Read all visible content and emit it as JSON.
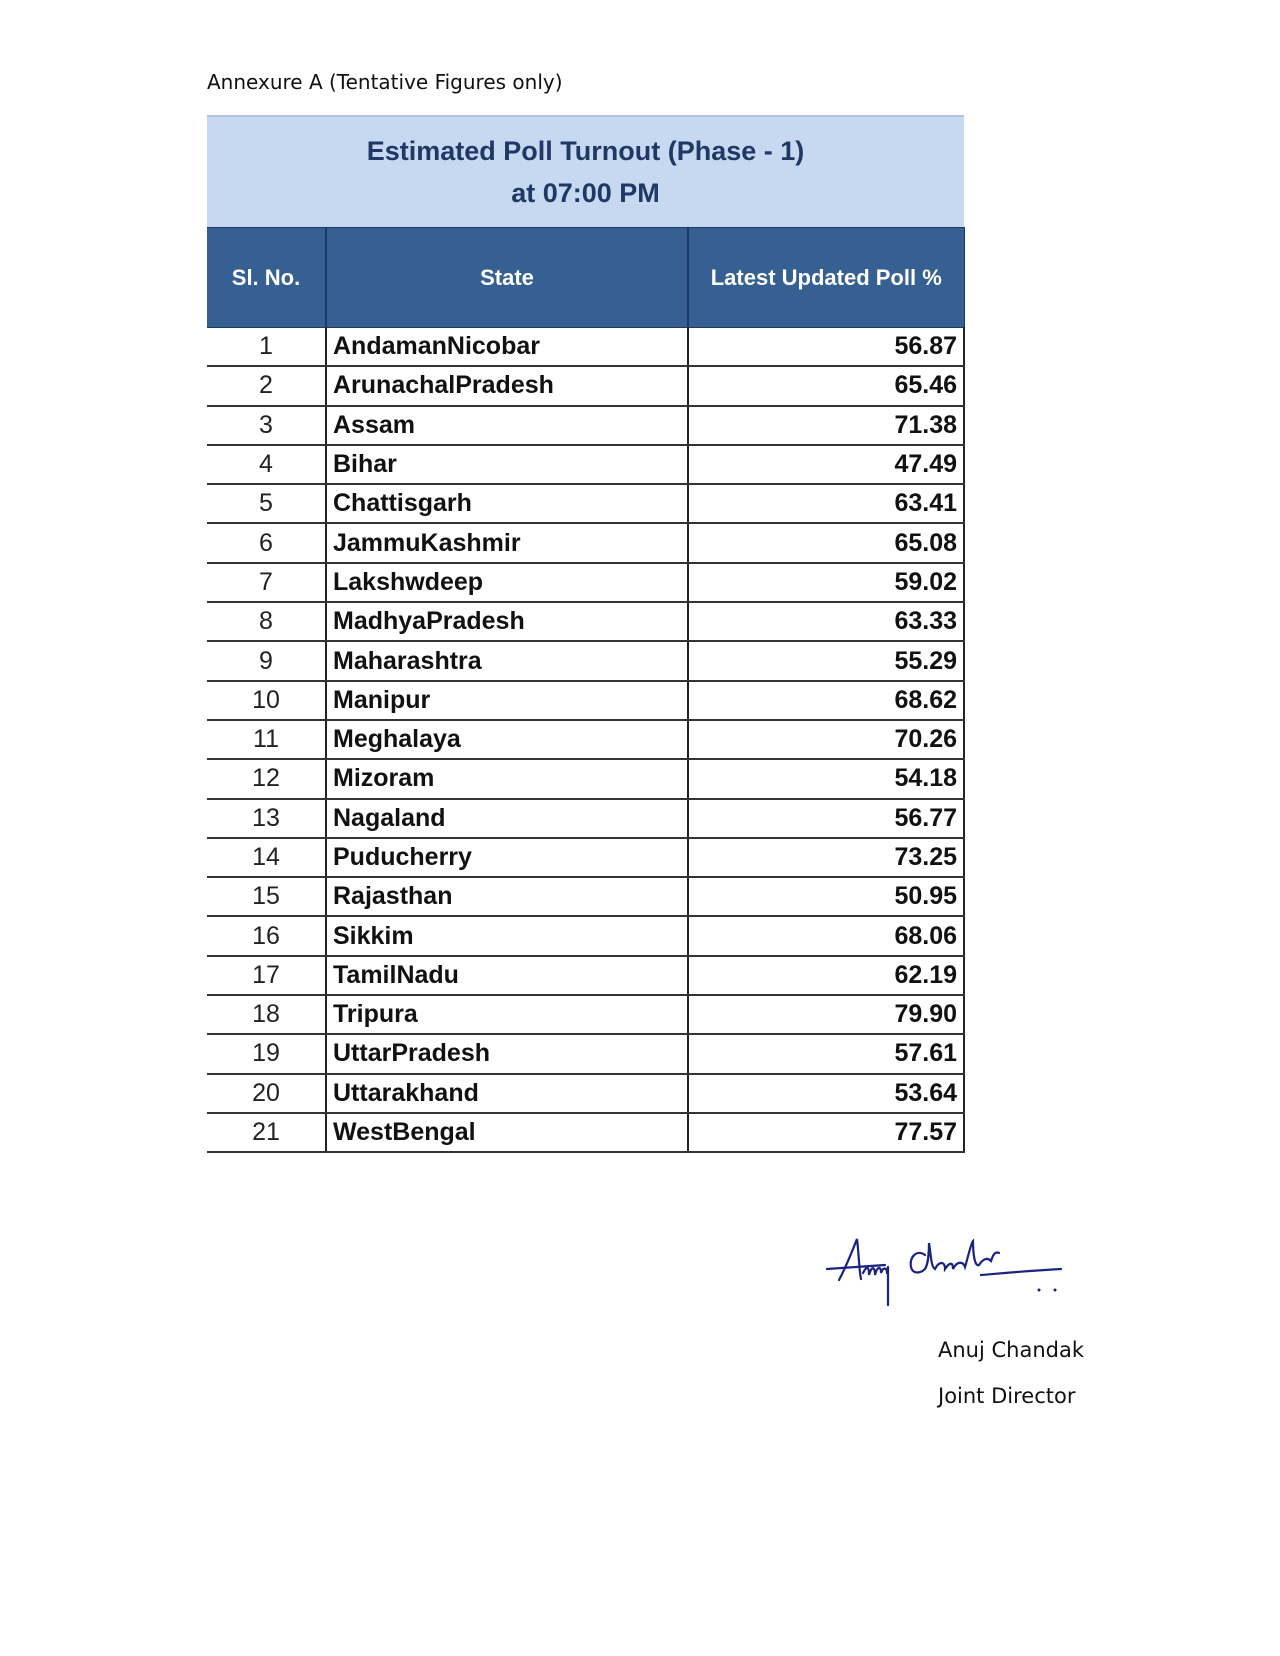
{
  "annexure": "Annexure A (Tentative Figures only)",
  "table": {
    "title_line1": "Estimated Poll Turnout (Phase - 1)",
    "title_line2": "at 07:00 PM",
    "headers": [
      "Sl. No.",
      "State",
      "Latest Updated Poll %"
    ],
    "rows": [
      {
        "sl": "1",
        "state": "AndamanNicobar",
        "poll": "56.87"
      },
      {
        "sl": "2",
        "state": "ArunachalPradesh",
        "poll": "65.46"
      },
      {
        "sl": "3",
        "state": "Assam",
        "poll": "71.38"
      },
      {
        "sl": "4",
        "state": "Bihar",
        "poll": "47.49"
      },
      {
        "sl": "5",
        "state": "Chattisgarh",
        "poll": "63.41"
      },
      {
        "sl": "6",
        "state": "JammuKashmir",
        "poll": "65.08"
      },
      {
        "sl": "7",
        "state": "Lakshwdeep",
        "poll": "59.02"
      },
      {
        "sl": "8",
        "state": "MadhyaPradesh",
        "poll": "63.33"
      },
      {
        "sl": "9",
        "state": "Maharashtra",
        "poll": "55.29"
      },
      {
        "sl": "10",
        "state": "Manipur",
        "poll": "68.62"
      },
      {
        "sl": "11",
        "state": "Meghalaya",
        "poll": "70.26"
      },
      {
        "sl": "12",
        "state": "Mizoram",
        "poll": "54.18"
      },
      {
        "sl": "13",
        "state": "Nagaland",
        "poll": "56.77"
      },
      {
        "sl": "14",
        "state": "Puducherry",
        "poll": "73.25"
      },
      {
        "sl": "15",
        "state": "Rajasthan",
        "poll": "50.95"
      },
      {
        "sl": "16",
        "state": "Sikkim",
        "poll": "68.06"
      },
      {
        "sl": "17",
        "state": "TamilNadu",
        "poll": "62.19"
      },
      {
        "sl": "18",
        "state": "Tripura",
        "poll": "79.90"
      },
      {
        "sl": "19",
        "state": "UttarPradesh",
        "poll": "57.61"
      },
      {
        "sl": "20",
        "state": "Uttarakhand",
        "poll": "53.64"
      },
      {
        "sl": "21",
        "state": "WestBengal",
        "poll": "77.57"
      }
    ]
  },
  "signature": {
    "handwritten": "Anuj Chandak",
    "name": "Anuj Chandak",
    "designation": "Joint Director",
    "ink_color": "#1a237e"
  },
  "colors": {
    "title_band": "#c6d9f1",
    "header": "#366092",
    "title_text": "#1f3864"
  }
}
